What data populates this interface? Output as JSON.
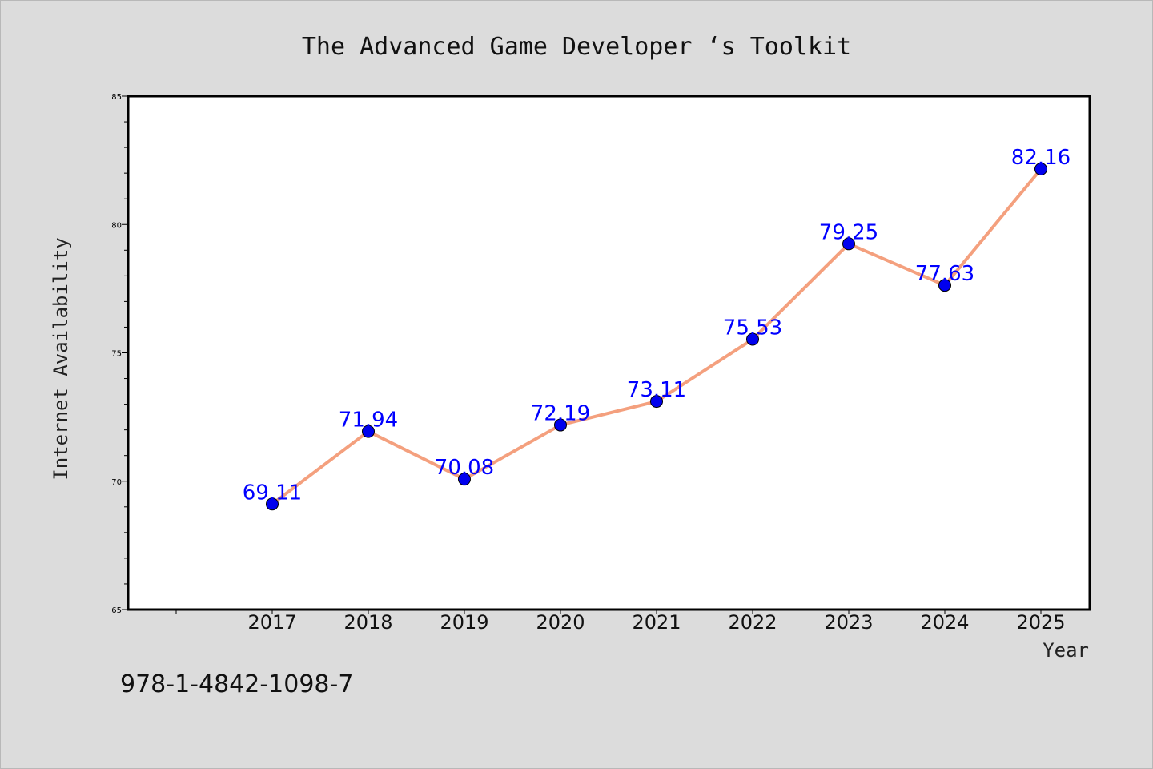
{
  "chart_data": {
    "type": "line",
    "title": "The Advanced Game Developer ‘s Toolkit",
    "xlabel": "Year",
    "ylabel": "Internet Availability",
    "x": [
      "2017",
      "2018",
      "2019",
      "2020",
      "2021",
      "2022",
      "2023",
      "2024",
      "2025"
    ],
    "series": [
      {
        "values": [
          69.11,
          71.94,
          70.08,
          72.19,
          73.11,
          75.53,
          79.25,
          77.63,
          82.16
        ]
      }
    ],
    "data_labels": [
      "69.11",
      "71.94",
      "70.08",
      "72.19",
      "73.11",
      "75.53",
      "79.25",
      "77.63",
      "82.16"
    ],
    "ylim": [
      65,
      85
    ],
    "yticks": [
      "65",
      "70",
      "75",
      "80",
      "85"
    ],
    "grid": false,
    "legend": "none",
    "colors": {
      "line": "#f4a07e",
      "marker": "#0000ee",
      "label": "#0000ff",
      "plot_bg": "#ffffff",
      "page_bg": "#dcdcdc"
    }
  },
  "footer": {
    "isbn": "978-1-4842-1098-7"
  }
}
